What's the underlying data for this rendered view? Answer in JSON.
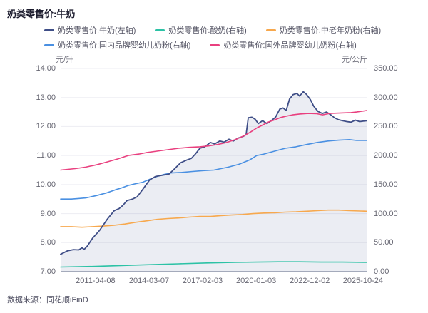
{
  "title": "奶类零售价:牛奶",
  "footer": {
    "source_prefix": "数据来源：",
    "source_name": "同花顺iFinD"
  },
  "colors": {
    "milk": "#3f4e87",
    "yogurt": "#2cc2a5",
    "elder_powder": "#f7a84d",
    "domestic_infant": "#4a90e2",
    "foreign_infant": "#e9407f",
    "gridline": "#ededf3",
    "axis_line": "#aeb2bf",
    "area_fill": "rgba(103,116,166,0.13)"
  },
  "chart_data": {
    "type": "line",
    "title": "奶类零售价:牛奶",
    "left_axis": {
      "label": "元/升",
      "min": 7,
      "max": 14,
      "ticks": [
        "14.00",
        "13.00",
        "12.00",
        "11.00",
        "10.00",
        "9.00",
        "8.00",
        "7.00"
      ]
    },
    "right_axis": {
      "label": "元/公斤",
      "min": 0,
      "max": 350,
      "ticks": [
        "350.00",
        "300.00",
        "250.00",
        "200.00",
        "150.00",
        "100.00",
        "50.00",
        "0.00"
      ]
    },
    "x_ticks": [
      "2011-04-08",
      "2014-03-07",
      "2017-02-03",
      "2020-01-03",
      "2022-12-02",
      "2025-10-24"
    ],
    "x_tick_positions": [
      0.114,
      0.289,
      0.464,
      0.639,
      0.814,
      0.988
    ],
    "grid": true,
    "legend_position": "top",
    "series": [
      {
        "name": "奶类零售价:牛奶(左轴)",
        "axis": "left",
        "color": "#3f4e87",
        "area": true,
        "width": 1.8,
        "points": [
          [
            0,
            7.6
          ],
          [
            0.023,
            7.72
          ],
          [
            0.042,
            7.76
          ],
          [
            0.059,
            7.75
          ],
          [
            0.07,
            7.82
          ],
          [
            0.077,
            7.77
          ],
          [
            0.087,
            7.88
          ],
          [
            0.105,
            8.16
          ],
          [
            0.128,
            8.43
          ],
          [
            0.152,
            8.8
          ],
          [
            0.175,
            9.1
          ],
          [
            0.191,
            9.17
          ],
          [
            0.203,
            9.28
          ],
          [
            0.217,
            9.45
          ],
          [
            0.235,
            9.5
          ],
          [
            0.25,
            9.58
          ],
          [
            0.268,
            9.83
          ],
          [
            0.291,
            10.16
          ],
          [
            0.31,
            10.28
          ],
          [
            0.333,
            10.32
          ],
          [
            0.354,
            10.36
          ],
          [
            0.373,
            10.55
          ],
          [
            0.392,
            10.75
          ],
          [
            0.413,
            10.85
          ],
          [
            0.427,
            10.9
          ],
          [
            0.441,
            11.06
          ],
          [
            0.455,
            11.25
          ],
          [
            0.471,
            11.3
          ],
          [
            0.489,
            11.45
          ],
          [
            0.503,
            11.4
          ],
          [
            0.52,
            11.5
          ],
          [
            0.534,
            11.46
          ],
          [
            0.55,
            11.56
          ],
          [
            0.564,
            11.5
          ],
          [
            0.58,
            11.6
          ],
          [
            0.597,
            11.66
          ],
          [
            0.606,
            11.72
          ],
          [
            0.613,
            12.3
          ],
          [
            0.625,
            12.32
          ],
          [
            0.636,
            12.25
          ],
          [
            0.646,
            12.1
          ],
          [
            0.66,
            12.2
          ],
          [
            0.674,
            12.1
          ],
          [
            0.688,
            12.2
          ],
          [
            0.702,
            12.32
          ],
          [
            0.716,
            12.6
          ],
          [
            0.727,
            12.64
          ],
          [
            0.737,
            12.55
          ],
          [
            0.748,
            12.95
          ],
          [
            0.76,
            13.1
          ],
          [
            0.772,
            13.14
          ],
          [
            0.781,
            13.05
          ],
          [
            0.793,
            13.2
          ],
          [
            0.804,
            13.1
          ],
          [
            0.816,
            12.93
          ],
          [
            0.827,
            12.7
          ],
          [
            0.841,
            12.52
          ],
          [
            0.855,
            12.45
          ],
          [
            0.869,
            12.5
          ],
          [
            0.883,
            12.4
          ],
          [
            0.895,
            12.3
          ],
          [
            0.907,
            12.24
          ],
          [
            0.921,
            12.2
          ],
          [
            0.935,
            12.17
          ],
          [
            0.949,
            12.15
          ],
          [
            0.963,
            12.22
          ],
          [
            0.977,
            12.17
          ],
          [
            1,
            12.2
          ]
        ]
      },
      {
        "name": "奶类零售价:酸奶(右轴)",
        "axis": "right",
        "color": "#2cc2a5",
        "area": false,
        "width": 1.6,
        "points": [
          [
            0,
            8
          ],
          [
            0.105,
            9
          ],
          [
            0.198,
            10.5
          ],
          [
            0.291,
            12
          ],
          [
            0.385,
            13.5
          ],
          [
            0.478,
            15
          ],
          [
            0.571,
            16
          ],
          [
            0.641,
            16.5
          ],
          [
            0.711,
            17
          ],
          [
            0.781,
            17
          ],
          [
            0.851,
            16.5
          ],
          [
            0.921,
            16.5
          ],
          [
            1,
            16
          ]
        ]
      },
      {
        "name": "奶类零售价:中老年奶粉(右轴)",
        "axis": "right",
        "color": "#f7a84d",
        "area": false,
        "width": 1.6,
        "points": [
          [
            0,
            77.5
          ],
          [
            0.035,
            77.5
          ],
          [
            0.07,
            76.5
          ],
          [
            0.105,
            77.5
          ],
          [
            0.14,
            78.5
          ],
          [
            0.175,
            80
          ],
          [
            0.21,
            82
          ],
          [
            0.245,
            85
          ],
          [
            0.28,
            87.5
          ],
          [
            0.315,
            90
          ],
          [
            0.35,
            91.5
          ],
          [
            0.385,
            92.5
          ],
          [
            0.42,
            94
          ],
          [
            0.455,
            95
          ],
          [
            0.49,
            95
          ],
          [
            0.524,
            96.5
          ],
          [
            0.559,
            97.5
          ],
          [
            0.594,
            98.5
          ],
          [
            0.629,
            100
          ],
          [
            0.664,
            101
          ],
          [
            0.699,
            101.5
          ],
          [
            0.734,
            102.5
          ],
          [
            0.769,
            103
          ],
          [
            0.804,
            104
          ],
          [
            0.839,
            105
          ],
          [
            0.874,
            106
          ],
          [
            0.909,
            106
          ],
          [
            0.944,
            105
          ],
          [
            1,
            104
          ]
        ]
      },
      {
        "name": "奶类零售价:国内品牌婴幼儿奶粉(右轴)",
        "axis": "right",
        "color": "#4a90e2",
        "area": false,
        "width": 1.6,
        "points": [
          [
            0,
            125
          ],
          [
            0.035,
            125
          ],
          [
            0.058,
            126
          ],
          [
            0.082,
            127
          ],
          [
            0.117,
            131
          ],
          [
            0.152,
            136
          ],
          [
            0.179,
            141
          ],
          [
            0.198,
            144
          ],
          [
            0.221,
            148.5
          ],
          [
            0.245,
            151.5
          ],
          [
            0.268,
            154
          ],
          [
            0.291,
            159
          ],
          [
            0.315,
            164
          ],
          [
            0.338,
            167.5
          ],
          [
            0.361,
            170
          ],
          [
            0.396,
            171
          ],
          [
            0.431,
            172.5
          ],
          [
            0.466,
            174
          ],
          [
            0.501,
            175
          ],
          [
            0.548,
            180
          ],
          [
            0.583,
            185
          ],
          [
            0.618,
            192.5
          ],
          [
            0.641,
            200
          ],
          [
            0.664,
            202.5
          ],
          [
            0.699,
            207.5
          ],
          [
            0.734,
            212.5
          ],
          [
            0.769,
            215
          ],
          [
            0.804,
            219
          ],
          [
            0.839,
            222.5
          ],
          [
            0.874,
            225
          ],
          [
            0.909,
            226.5
          ],
          [
            0.944,
            227.5
          ],
          [
            0.967,
            226
          ],
          [
            1,
            226
          ]
        ]
      },
      {
        "name": "奶类零售价:国外品牌婴幼儿奶粉(右轴)",
        "axis": "right",
        "color": "#e9407f",
        "area": false,
        "width": 1.6,
        "points": [
          [
            0,
            175
          ],
          [
            0.047,
            177.5
          ],
          [
            0.082,
            180
          ],
          [
            0.117,
            184
          ],
          [
            0.152,
            189
          ],
          [
            0.186,
            194
          ],
          [
            0.221,
            200
          ],
          [
            0.256,
            202.5
          ],
          [
            0.28,
            205
          ],
          [
            0.315,
            207.5
          ],
          [
            0.35,
            210
          ],
          [
            0.385,
            212.5
          ],
          [
            0.42,
            214
          ],
          [
            0.455,
            215
          ],
          [
            0.483,
            216.5
          ],
          [
            0.513,
            219
          ],
          [
            0.543,
            222.5
          ],
          [
            0.571,
            227.5
          ],
          [
            0.599,
            234
          ],
          [
            0.622,
            241
          ],
          [
            0.641,
            247.5
          ],
          [
            0.66,
            252.5
          ],
          [
            0.678,
            257.5
          ],
          [
            0.697,
            261
          ],
          [
            0.716,
            265
          ],
          [
            0.734,
            267.5
          ],
          [
            0.758,
            270
          ],
          [
            0.781,
            271.5
          ],
          [
            0.809,
            272.5
          ],
          [
            0.837,
            272
          ],
          [
            0.856,
            270
          ],
          [
            0.879,
            272.5
          ],
          [
            0.902,
            273
          ],
          [
            0.925,
            273.5
          ],
          [
            0.949,
            274
          ],
          [
            0.967,
            275
          ],
          [
            1,
            277.5
          ]
        ]
      }
    ]
  }
}
